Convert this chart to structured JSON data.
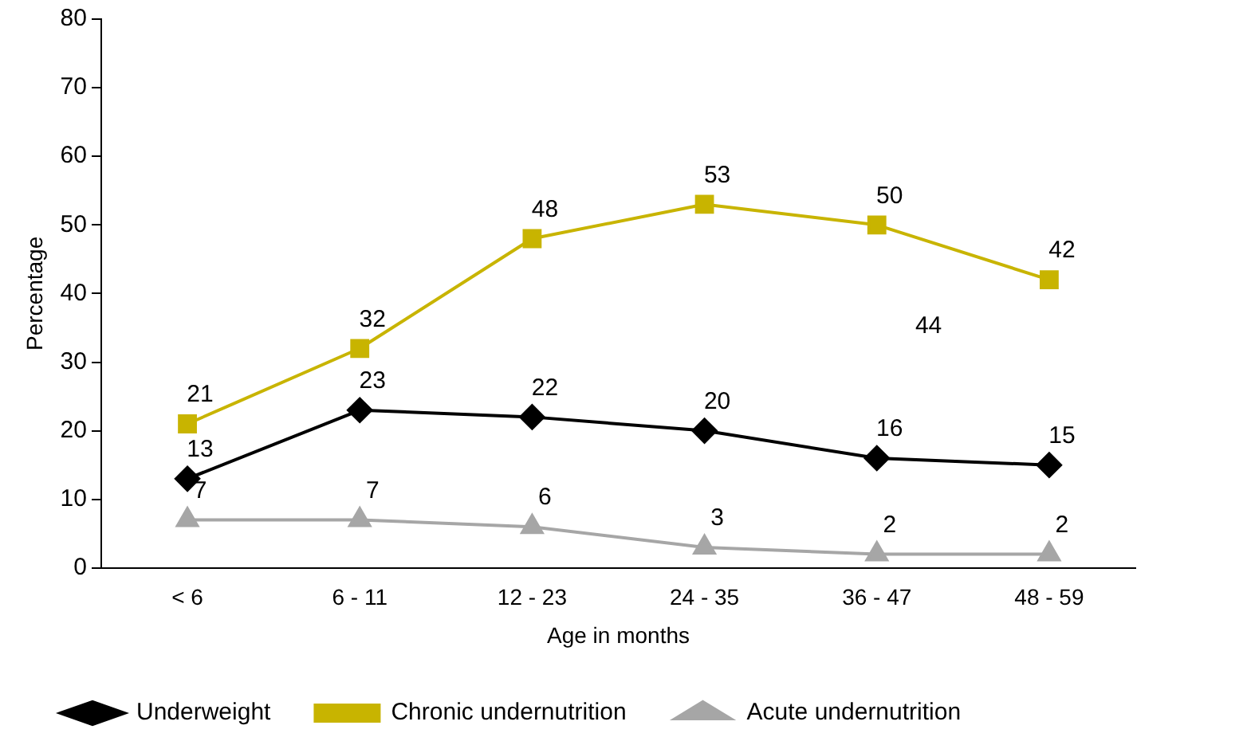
{
  "chart_data": {
    "type": "line",
    "xlabel": "Age in months",
    "ylabel": "Percentage",
    "categories": [
      "< 6",
      "6 - 11",
      "12 - 23",
      "24 - 35",
      "36 - 47",
      "48 - 59"
    ],
    "series": [
      {
        "name": "Underweight",
        "color": "#000000",
        "marker": "diamond",
        "values": [
          13,
          23,
          22,
          20,
          16,
          15
        ]
      },
      {
        "name": "Chronic undernutrition",
        "color": "#c8b400",
        "marker": "square",
        "values": [
          21,
          32,
          48,
          53,
          50,
          42
        ]
      },
      {
        "name": "Acute undernutrition",
        "color": "#a6a6a6",
        "marker": "triangle",
        "values": [
          7,
          7,
          6,
          3,
          2,
          2
        ]
      }
    ],
    "ylim": [
      0,
      80
    ],
    "yticks": [
      0,
      10,
      20,
      30,
      40,
      50,
      60,
      70,
      80
    ],
    "grid": false,
    "legend": "bottom",
    "line_style": "solid",
    "data_labels": true,
    "annotations": [
      "44"
    ]
  }
}
